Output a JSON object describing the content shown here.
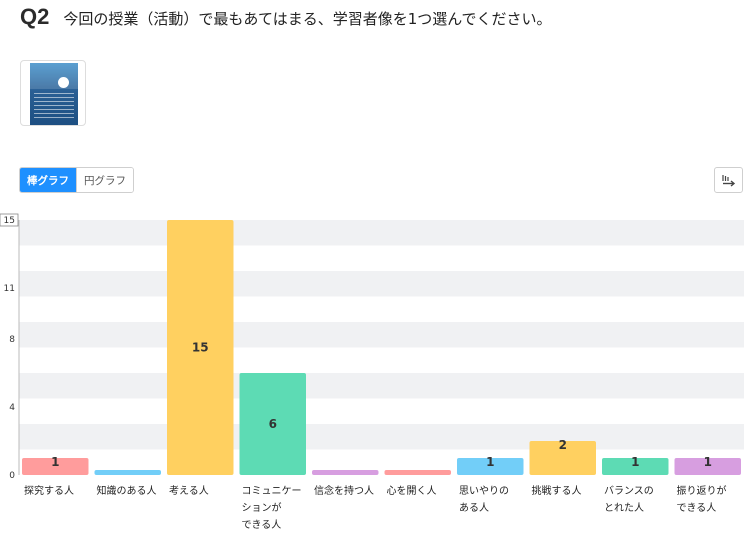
{
  "question": {
    "number": "Q2",
    "text": "今回の授業（活動）で最もあてはまる、学習者像を1つ選んでください。"
  },
  "toggle": {
    "bar_label": "棒グラフ",
    "pie_label": "円グラフ",
    "active": "bar"
  },
  "icons": {
    "thumbnail": "document-thumbnail-icon",
    "export": "export-arrow-icon"
  },
  "colors": {
    "active_button": "#1e90ff",
    "band": "#f0f1f3"
  },
  "chart_data": {
    "type": "bar",
    "categories": [
      [
        "探究する人"
      ],
      [
        "知識のある人"
      ],
      [
        "考える人"
      ],
      [
        "コミュニケー",
        "ションが",
        "できる人"
      ],
      [
        "信念を持つ人"
      ],
      [
        "心を開く人"
      ],
      [
        "思いやりの",
        "ある人"
      ],
      [
        "挑戦する人"
      ],
      [
        "バランスの",
        "とれた人"
      ],
      [
        "振り返りが",
        "できる人"
      ]
    ],
    "values": [
      1,
      0,
      15,
      6,
      0,
      0,
      1,
      2,
      1,
      1
    ],
    "data_labels": [
      "1",
      "",
      "15",
      "6",
      "",
      "",
      "1",
      "2",
      "1",
      "1"
    ],
    "colors": [
      "#ff9c9c",
      "#72cef8",
      "#ffd060",
      "#5ddbb4",
      "#d79ee0",
      "#ff9c9c",
      "#72cef8",
      "#ffd060",
      "#5ddbb4",
      "#d79ee0"
    ],
    "yticks": [
      "0",
      "4",
      "8",
      "11",
      "15"
    ],
    "ylim": [
      0,
      15
    ],
    "grid": true
  }
}
